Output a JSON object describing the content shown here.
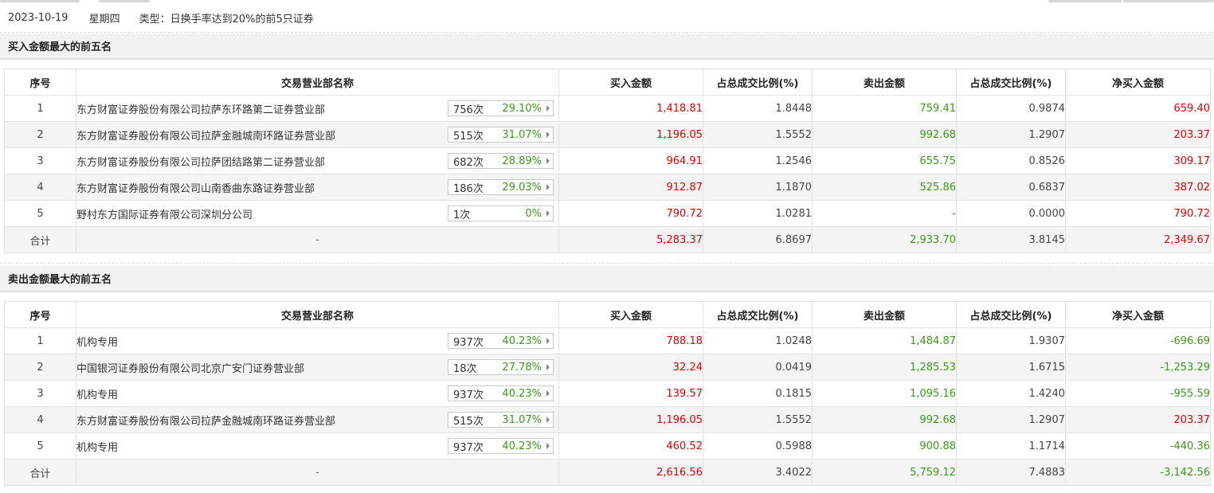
{
  "header": {
    "date": "2023-10-19",
    "weekday": "星期四",
    "type_label": "类型：日换手率达到20%的前5只证券"
  },
  "columns": {
    "idx": "序号",
    "dept": "交易营业部名称",
    "buy": "买入金额",
    "buy_ratio": "占总成交比例(%)",
    "sell": "卖出金额",
    "sell_ratio": "占总成交比例(%)",
    "net": "净买入金额"
  },
  "colors": {
    "positive": "#e30000",
    "negative": "#3a9a1a",
    "section_bg": "#f2f2f2"
  },
  "buy_top5": {
    "title": "买入金额最大的前五名",
    "rows": [
      {
        "idx": "1",
        "dept": "东方财富证券股份有限公司拉萨东环路第二证券营业部",
        "count": "756次",
        "rate": "29.10%",
        "buy": "1,418.81",
        "buy_ratio": "1.8448",
        "sell": "759.41",
        "sell_ratio": "0.9874",
        "net": "659.40"
      },
      {
        "idx": "2",
        "dept": "东方财富证券股份有限公司拉萨金融城南环路证券营业部",
        "count": "515次",
        "rate": "31.07%",
        "buy": "1,196.05",
        "buy_ratio": "1.5552",
        "sell": "992.68",
        "sell_ratio": "1.2907",
        "net": "203.37"
      },
      {
        "idx": "3",
        "dept": "东方财富证券股份有限公司拉萨团结路第二证券营业部",
        "count": "682次",
        "rate": "28.89%",
        "buy": "964.91",
        "buy_ratio": "1.2546",
        "sell": "655.75",
        "sell_ratio": "0.8526",
        "net": "309.17"
      },
      {
        "idx": "4",
        "dept": "东方财富证券股份有限公司山南香曲东路证券营业部",
        "count": "186次",
        "rate": "29.03%",
        "buy": "912.87",
        "buy_ratio": "1.1870",
        "sell": "525.86",
        "sell_ratio": "0.6837",
        "net": "387.02"
      },
      {
        "idx": "5",
        "dept": "野村东方国际证券有限公司深圳分公司",
        "count": "1次",
        "rate": "0%",
        "buy": "790.72",
        "buy_ratio": "1.0281",
        "sell": "-",
        "sell_ratio": "0.0000",
        "net": "790.72"
      }
    ],
    "total": {
      "label": "合计",
      "dept": "-",
      "buy": "5,283.37",
      "buy_ratio": "6.8697",
      "sell": "2,933.70",
      "sell_ratio": "3.8145",
      "net": "2,349.67"
    }
  },
  "sell_top5": {
    "title": "卖出金额最大的前五名",
    "rows": [
      {
        "idx": "1",
        "dept": "机构专用",
        "count": "937次",
        "rate": "40.23%",
        "buy": "788.18",
        "buy_ratio": "1.0248",
        "sell": "1,484.87",
        "sell_ratio": "1.9307",
        "net": "-696.69"
      },
      {
        "idx": "2",
        "dept": "中国银河证券股份有限公司北京广安门证券营业部",
        "count": "18次",
        "rate": "27.78%",
        "buy": "32.24",
        "buy_ratio": "0.0419",
        "sell": "1,285.53",
        "sell_ratio": "1.6715",
        "net": "-1,253.29"
      },
      {
        "idx": "3",
        "dept": "机构专用",
        "count": "937次",
        "rate": "40.23%",
        "buy": "139.57",
        "buy_ratio": "0.1815",
        "sell": "1,095.16",
        "sell_ratio": "1.4240",
        "net": "-955.59"
      },
      {
        "idx": "4",
        "dept": "东方财富证券股份有限公司拉萨金融城南环路证券营业部",
        "count": "515次",
        "rate": "31.07%",
        "buy": "1,196.05",
        "buy_ratio": "1.5552",
        "sell": "992.68",
        "sell_ratio": "1.2907",
        "net": "203.37"
      },
      {
        "idx": "5",
        "dept": "机构专用",
        "count": "937次",
        "rate": "40.23%",
        "buy": "460.52",
        "buy_ratio": "0.5988",
        "sell": "900.88",
        "sell_ratio": "1.1714",
        "net": "-440.36"
      }
    ],
    "total": {
      "label": "合计",
      "dept": "-",
      "buy": "2,616.56",
      "buy_ratio": "3.4022",
      "sell": "5,759.12",
      "sell_ratio": "7.4883",
      "net": "-3,142.56"
    }
  }
}
